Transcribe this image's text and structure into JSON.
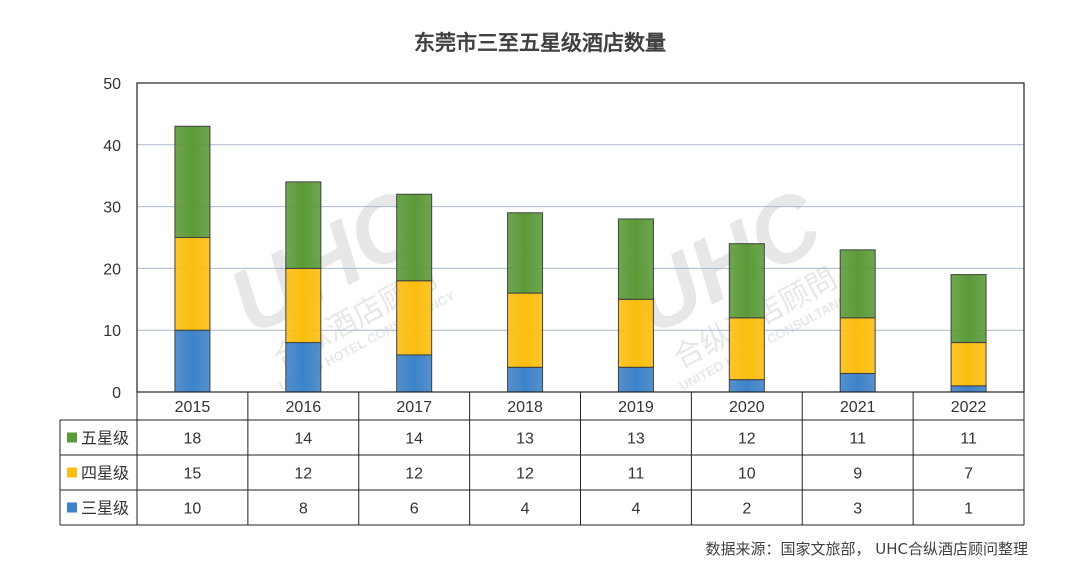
{
  "source_note": "数据来源：国家文旅部， UHC合纵酒店顾问整理",
  "watermark": {
    "logo": "UHC",
    "cn": "合纵酒店顾問",
    "en": "UNITED HOTEL CONSULTANCY"
  },
  "colors": {
    "five_star": "#5b9a38",
    "four_star": "#fbbd0f",
    "three_star": "#3d82c8",
    "gridline": "#a9b8cc"
  },
  "chart_data": {
    "type": "bar",
    "stacked": true,
    "title": "东莞市三至五星级酒店数量",
    "categories": [
      "2015",
      "2016",
      "2017",
      "2018",
      "2019",
      "2020",
      "2021",
      "2022"
    ],
    "series": [
      {
        "name": "五星级",
        "color": "#5b9a38",
        "values": [
          18,
          14,
          14,
          13,
          13,
          12,
          11,
          11
        ]
      },
      {
        "name": "四星级",
        "color": "#fbbd0f",
        "values": [
          15,
          12,
          12,
          12,
          11,
          10,
          9,
          7
        ]
      },
      {
        "name": "三星级",
        "color": "#3d82c8",
        "values": [
          10,
          8,
          6,
          4,
          4,
          2,
          3,
          1
        ]
      }
    ],
    "stack_order_bottom_to_top": [
      "三星级",
      "四星级",
      "五星级"
    ],
    "ylim": [
      0,
      50
    ],
    "yticks": [
      0,
      10,
      20,
      30,
      40,
      50
    ],
    "grid": true,
    "data_table": true,
    "xlabel": "",
    "ylabel": ""
  }
}
